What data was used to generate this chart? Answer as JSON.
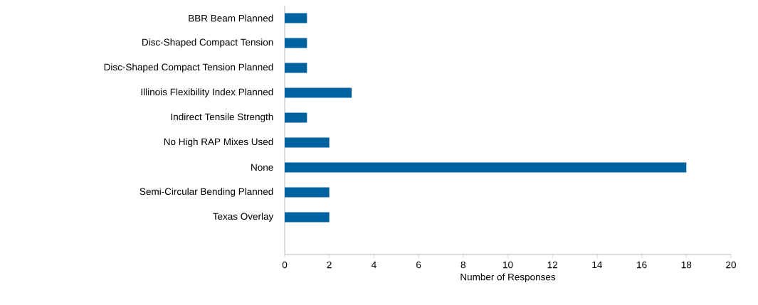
{
  "chart_data": {
    "type": "bar",
    "orientation": "horizontal",
    "xlabel": "Number of Responses",
    "categories": [
      "BBR Beam Planned",
      "Disc-Shaped Compact Tension",
      "Disc-Shaped Compact Tension Planned",
      "Illinois Flexibility Index Planned",
      "Indirect Tensile Strength",
      "No High RAP Mixes Used",
      "None",
      "Semi-Circular Bending Planned",
      "Texas Overlay",
      null
    ],
    "values": [
      1,
      1,
      1,
      3,
      1,
      2,
      18,
      2,
      2,
      null
    ],
    "color": "#0063a0",
    "xlim": [
      0,
      20
    ],
    "xticks": [
      0,
      2,
      4,
      6,
      8,
      10,
      12,
      14,
      16,
      18,
      20
    ]
  }
}
